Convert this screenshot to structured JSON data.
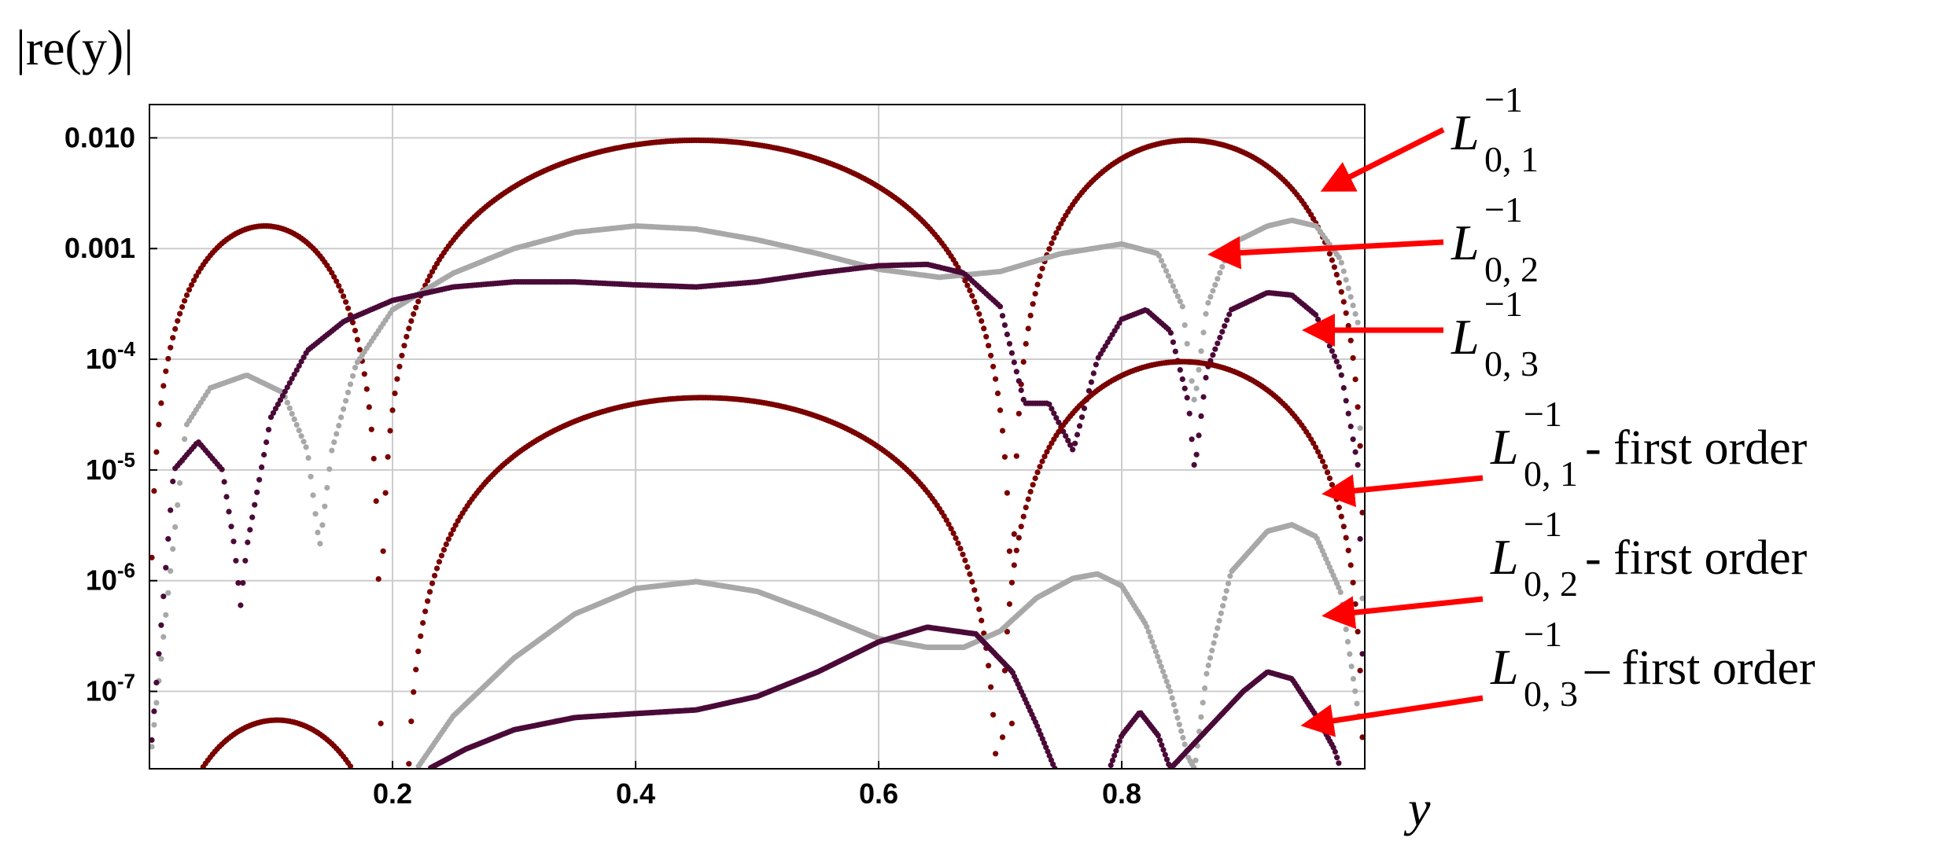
{
  "chart_data": {
    "type": "scatter",
    "title": "",
    "ylabel": "|re(y)|",
    "xlabel": "y",
    "yscale": "log",
    "grid": true,
    "xlim": [
      0.0,
      1.0
    ],
    "ylim": [
      2e-08,
      0.02
    ],
    "x_ticks": [
      {
        "value": 0.2,
        "label": "0.2"
      },
      {
        "value": 0.4,
        "label": "0.4"
      },
      {
        "value": 0.6,
        "label": "0.6"
      },
      {
        "value": 0.8,
        "label": "0.8"
      }
    ],
    "y_ticks": [
      {
        "value": 0.01,
        "label": "0.010"
      },
      {
        "value": 0.001,
        "label": "0.001"
      },
      {
        "value": 0.0001,
        "label": "10",
        "exp": "-4"
      },
      {
        "value": 1e-05,
        "label": "10",
        "exp": "-5"
      },
      {
        "value": 1e-06,
        "label": "10",
        "exp": "-6"
      },
      {
        "value": 1e-07,
        "label": "10",
        "exp": "-7"
      }
    ],
    "series": [
      {
        "name": "L_{0,1}^{-1}",
        "main": "L",
        "sub": "0, 1",
        "sup": "−1",
        "suffix": "",
        "color": "#7a0000",
        "roots": [
          0.0,
          0.19,
          0.71,
          1.0
        ],
        "peaks": [
          0.0016,
          0.0095,
          0.0095
        ],
        "min": 2e-08
      },
      {
        "name": "L_{0,2}^{-1}",
        "main": "L",
        "sub": "0, 2",
        "sup": "−1",
        "suffix": "",
        "color": "#a8a8a8",
        "x": [
          0.0,
          0.03,
          0.05,
          0.08,
          0.11,
          0.13,
          0.14,
          0.15,
          0.17,
          0.2,
          0.25,
          0.3,
          0.35,
          0.4,
          0.45,
          0.5,
          0.55,
          0.6,
          0.65,
          0.7,
          0.75,
          0.8,
          0.83,
          0.85,
          0.86,
          0.87,
          0.89,
          0.92,
          0.94,
          0.96,
          0.98,
          0.995,
          1.0
        ],
        "y": [
          2e-08,
          2.5e-05,
          5.5e-05,
          7.2e-05,
          5e-05,
          1.5e-05,
          2e-06,
          1.5e-05,
          9e-05,
          0.00028,
          0.0006,
          0.001,
          0.0014,
          0.0016,
          0.0015,
          0.0012,
          0.0009,
          0.00065,
          0.00055,
          0.00062,
          0.0009,
          0.0011,
          0.0009,
          0.0003,
          4e-05,
          0.0003,
          0.0011,
          0.0016,
          0.0018,
          0.0016,
          0.0008,
          0.0002,
          2e-08
        ]
      },
      {
        "name": "L_{0,3}^{-1}",
        "main": "L",
        "sub": "0, 3",
        "sup": "−1",
        "suffix": "",
        "color": "#4a0a38",
        "x": [
          0.0,
          0.02,
          0.04,
          0.06,
          0.07,
          0.075,
          0.08,
          0.1,
          0.13,
          0.16,
          0.2,
          0.25,
          0.3,
          0.35,
          0.4,
          0.45,
          0.5,
          0.55,
          0.6,
          0.64,
          0.67,
          0.7,
          0.72,
          0.74,
          0.76,
          0.78,
          0.8,
          0.82,
          0.84,
          0.855,
          0.86,
          0.87,
          0.89,
          0.92,
          0.94,
          0.96,
          0.98,
          0.995,
          1.0
        ],
        "y": [
          2e-08,
          1e-05,
          1.8e-05,
          1e-05,
          2e-06,
          6e-07,
          2e-06,
          3e-05,
          0.00012,
          0.00022,
          0.00034,
          0.00045,
          0.0005,
          0.0005,
          0.00047,
          0.00045,
          0.0005,
          0.0006,
          0.0007,
          0.00072,
          0.0006,
          0.0003,
          4e-05,
          4e-05,
          1.5e-05,
          0.0001,
          0.00023,
          0.00028,
          0.00018,
          4e-05,
          1e-05,
          8e-05,
          0.00028,
          0.0004,
          0.00038,
          0.00025,
          8e-05,
          1e-05,
          2e-08
        ]
      },
      {
        "name": "L_{0,1}^{-1} - first order",
        "main": "L",
        "sub": "0, 1",
        "sup": "−1",
        "suffix": " - first order",
        "color": "#7a0000",
        "roots": [
          0.0,
          0.21,
          0.7,
          1.0
        ],
        "peaks": [
          5.5e-08,
          4.5e-05,
          9.5e-05
        ],
        "min": 2e-08
      },
      {
        "name": "L_{0,2}^{-1} - first order",
        "main": "L",
        "sub": "0, 2",
        "sup": "−1",
        "suffix": " - first order",
        "color": "#a8a8a8",
        "x": [
          0.22,
          0.25,
          0.3,
          0.35,
          0.4,
          0.45,
          0.5,
          0.55,
          0.6,
          0.64,
          0.67,
          0.7,
          0.73,
          0.76,
          0.78,
          0.8,
          0.82,
          0.84,
          0.855,
          0.86,
          0.87,
          0.89,
          0.92,
          0.94,
          0.96,
          0.98,
          0.995
        ],
        "y": [
          2e-08,
          6e-08,
          2e-07,
          5e-07,
          8.5e-07,
          9.8e-07,
          8e-07,
          5e-07,
          3e-07,
          2.5e-07,
          2.5e-07,
          3.5e-07,
          7e-07,
          1.05e-06,
          1.15e-06,
          9e-07,
          4e-07,
          1e-07,
          2.5e-08,
          2e-08,
          1.5e-07,
          1.2e-06,
          2.8e-06,
          3.2e-06,
          2.5e-06,
          8e-07,
          6e-08
        ]
      },
      {
        "name": "L_{0,3}^{-1} - first order",
        "main": "L",
        "sub": "0, 3",
        "sup": "−1",
        "suffix": " – first order",
        "color": "#4a0a38",
        "x": [
          0.23,
          0.26,
          0.3,
          0.35,
          0.4,
          0.45,
          0.5,
          0.55,
          0.6,
          0.64,
          0.68,
          0.71,
          0.73,
          0.745,
          0.79,
          0.8,
          0.815,
          0.83,
          0.84,
          0.9,
          0.92,
          0.94,
          0.96,
          0.975,
          0.98
        ],
        "y": [
          2e-08,
          3e-08,
          4.5e-08,
          5.8e-08,
          6.3e-08,
          6.8e-08,
          9e-08,
          1.5e-07,
          2.8e-07,
          3.8e-07,
          3.3e-07,
          1.5e-07,
          5e-08,
          2e-08,
          2e-08,
          4e-08,
          6.5e-08,
          4e-08,
          2e-08,
          1e-07,
          1.5e-07,
          1.3e-07,
          6e-08,
          3e-08,
          2e-08
        ]
      }
    ]
  }
}
